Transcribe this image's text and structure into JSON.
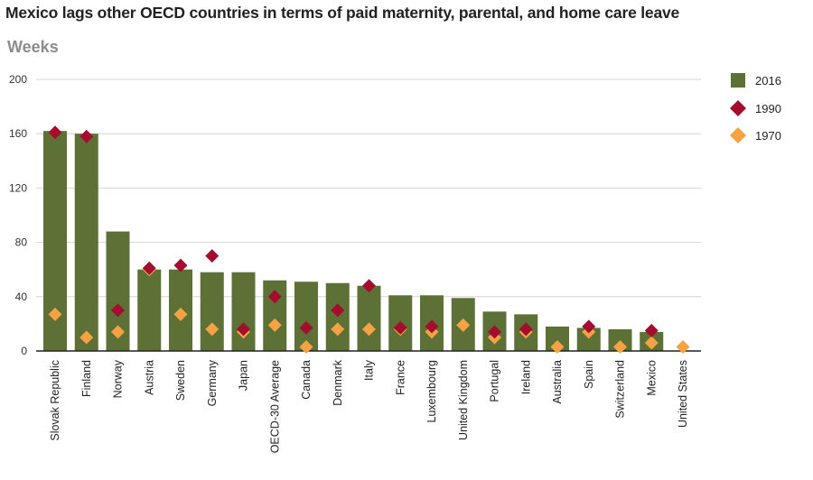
{
  "title": "Mexico lags other OECD countries in terms of paid maternity, parental, and home care leave",
  "subtitle": "Weeks",
  "colors": {
    "bar2016": "#5d7035",
    "d1990": "#a50d2f",
    "d1970": "#f7a145",
    "highlight": "#a50d2f",
    "grid": "#d4d4d4",
    "axis": "#222222"
  },
  "chart_data": {
    "type": "bar",
    "ylabel": "Weeks",
    "ylim": [
      0,
      200
    ],
    "yticks": [
      0,
      40,
      80,
      120,
      160,
      200
    ],
    "grid": true,
    "legend_position": "right",
    "highlighted_categories": [
      "OECD-30 Average",
      "Mexico"
    ],
    "categories": [
      "Slovak Republic",
      "Finland",
      "Norway",
      "Austria",
      "Sweden",
      "Germany",
      "Japan",
      "OECD-30 Average",
      "Canada",
      "Denmark",
      "Italy",
      "France",
      "Luxembourg",
      "United Kingdom",
      "Portugal",
      "Ireland",
      "Australia",
      "Spain",
      "Switzerland",
      "Mexico",
      "United States"
    ],
    "series": [
      {
        "name": "2016",
        "kind": "bar",
        "values": [
          162,
          160,
          88,
          60,
          60,
          58,
          58,
          52,
          51,
          50,
          48,
          41,
          41,
          39,
          29,
          27,
          18,
          17,
          16,
          14,
          0
        ]
      },
      {
        "name": "1990",
        "kind": "diamond",
        "values": [
          161,
          158,
          30,
          61,
          63,
          70,
          16,
          40,
          17,
          30,
          48,
          17,
          18,
          null,
          14,
          16,
          null,
          18,
          null,
          15,
          null
        ]
      },
      {
        "name": "1970",
        "kind": "diamond",
        "values": [
          27,
          10,
          14,
          60,
          27,
          16,
          14,
          19,
          3,
          16,
          16,
          16,
          14,
          19,
          10,
          14,
          3,
          14,
          3,
          6,
          3
        ]
      }
    ]
  }
}
